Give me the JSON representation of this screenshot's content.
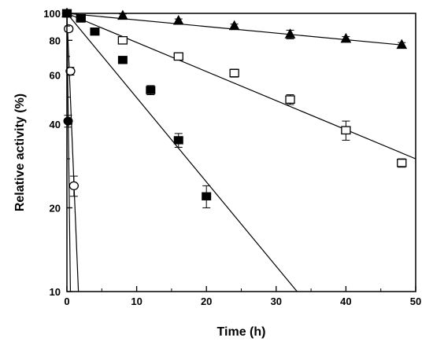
{
  "chart_data": {
    "type": "scatter",
    "title": "",
    "xlabel": "Time (h)",
    "ylabel": "Relative activity (%)",
    "xlim": [
      0,
      50
    ],
    "ylim": [
      10,
      100
    ],
    "yscale": "log",
    "x_ticks": [
      0,
      10,
      20,
      30,
      40,
      50
    ],
    "x_tick_labels": [
      "0",
      "10",
      "20",
      "30",
      "40",
      "50"
    ],
    "y_ticks": [
      10,
      20,
      40,
      60,
      80,
      100
    ],
    "y_tick_labels": [
      "10",
      "20",
      "40",
      "60",
      "80",
      "100"
    ],
    "grid": false,
    "legend": "none",
    "series": [
      {
        "marker": "filled-triangle",
        "color": "#000000",
        "points": [
          {
            "x": 0,
            "y": 100,
            "err": 0
          },
          {
            "x": 8,
            "y": 98,
            "err": 1.5
          },
          {
            "x": 16,
            "y": 94,
            "err": 1.5
          },
          {
            "x": 24,
            "y": 90,
            "err": 1.5
          },
          {
            "x": 32,
            "y": 84,
            "err": 3
          },
          {
            "x": 40,
            "y": 81,
            "err": 1.5
          },
          {
            "x": 48,
            "y": 77,
            "err": 1.5
          }
        ],
        "fit_line": {
          "x": [
            0,
            48
          ],
          "y": [
            100,
            77
          ]
        }
      },
      {
        "marker": "open-square",
        "color": "#000000",
        "points": [
          {
            "x": 0,
            "y": 100,
            "err": 0
          },
          {
            "x": 2,
            "y": 96,
            "err": 2
          },
          {
            "x": 8,
            "y": 80,
            "err": 1.5
          },
          {
            "x": 16,
            "y": 70,
            "err": 2
          },
          {
            "x": 24,
            "y": 61,
            "err": 2
          },
          {
            "x": 32,
            "y": 49,
            "err": 2
          },
          {
            "x": 40,
            "y": 38,
            "err": 3
          },
          {
            "x": 48,
            "y": 29,
            "err": 1
          }
        ],
        "fit_line": {
          "x": [
            0,
            50
          ],
          "y": [
            100,
            30
          ]
        }
      },
      {
        "marker": "filled-square",
        "color": "#000000",
        "points": [
          {
            "x": 0,
            "y": 100,
            "err": 0
          },
          {
            "x": 2,
            "y": 96,
            "err": 3
          },
          {
            "x": 4,
            "y": 86,
            "err": 2
          },
          {
            "x": 8,
            "y": 68,
            "err": 2
          },
          {
            "x": 12,
            "y": 53,
            "err": 2
          },
          {
            "x": 16,
            "y": 35,
            "err": 2
          },
          {
            "x": 20,
            "y": 22,
            "err": 2
          }
        ],
        "fit_line": {
          "x": [
            0,
            33
          ],
          "y": [
            100,
            10
          ]
        }
      },
      {
        "marker": "open-circle",
        "color": "#000000",
        "points": [
          {
            "x": 0,
            "y": 100,
            "err": 0
          },
          {
            "x": 0.25,
            "y": 88,
            "err": 2
          },
          {
            "x": 0.5,
            "y": 62,
            "err": 2
          },
          {
            "x": 1,
            "y": 24,
            "err": 2
          }
        ],
        "fit_line": {
          "x": [
            0,
            1.65
          ],
          "y": [
            100,
            10
          ]
        }
      },
      {
        "marker": "filled-circle",
        "color": "#000000",
        "points": [
          {
            "x": 0,
            "y": 100,
            "err": 0
          },
          {
            "x": 0.17,
            "y": 41,
            "err": 2
          }
        ],
        "fit_line": {
          "x": [
            0,
            0.5
          ],
          "y": [
            100,
            10
          ]
        }
      }
    ]
  }
}
